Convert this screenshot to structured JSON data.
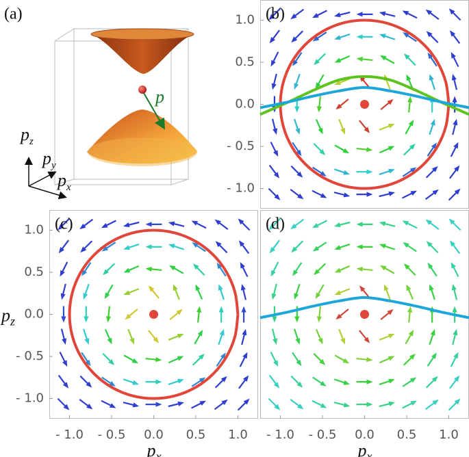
{
  "panel_a": {
    "label": "(a)",
    "vector_label": "p",
    "axis_z": "p",
    "axis_z_sub": "z",
    "axis_y": "p",
    "axis_y_sub": "y",
    "axis_x": "p",
    "axis_x_sub": "x"
  },
  "chart_data": [
    {
      "type": "vector-field",
      "label": "(b)",
      "xlim": [
        -1.24,
        1.24
      ],
      "ylim": [
        -1.24,
        1.24
      ],
      "yticks": [
        {
          "value": -1,
          "label": "- 1.0"
        },
        {
          "value": -0.5,
          "label": "- 0.5"
        },
        {
          "value": 0,
          "label": "0.0"
        },
        0.5,
        {
          "value": 1,
          "label": "1.0"
        }
      ],
      "series": [
        {
          "color": "#e0463a",
          "x": [
            1,
            0.966,
            0.866,
            0.707,
            0.5,
            0.259,
            0,
            -0.259,
            -0.5,
            -0.707,
            -0.866,
            -0.966,
            -1,
            -0.966,
            -0.866,
            -0.707,
            -0.5,
            -0.259,
            0,
            0.259,
            0.5,
            0.707,
            0.866,
            0.966,
            1
          ],
          "values": [
            0,
            0.259,
            0.5,
            0.707,
            0.866,
            0.966,
            1,
            0.966,
            0.866,
            0.707,
            0.5,
            0.259,
            0,
            -0.259,
            -0.5,
            -0.707,
            -0.866,
            -0.966,
            -1,
            -0.966,
            -0.866,
            -0.707,
            -0.5,
            -0.259,
            0
          ]
        },
        {
          "color": "#5ec31f",
          "x": [
            -1.24,
            -0.9,
            -0.6,
            -0.3,
            0,
            0.3,
            0.6,
            0.9,
            1.24
          ],
          "values": [
            -0.12,
            0.03,
            0.17,
            0.29,
            0.33,
            0.29,
            0.17,
            0.03,
            -0.12
          ]
        },
        {
          "color": "#1ea6d8",
          "x": [
            -1.24,
            -0.9,
            -0.6,
            -0.3,
            0,
            0.3,
            0.6,
            0.9,
            1.24
          ],
          "values": [
            -0.04,
            0.03,
            0.1,
            0.16,
            0.2,
            0.16,
            0.1,
            0.03,
            -0.04
          ]
        }
      ],
      "points": {
        "color": "#e0463a",
        "x": [
          0
        ],
        "values": [
          0
        ]
      }
    },
    {
      "type": "vector-field",
      "label": "(c)",
      "xlim": [
        -1.24,
        1.24
      ],
      "ylim": [
        -1.24,
        1.24
      ],
      "xlabel": "p",
      "xlabel_sub": "x",
      "ylabel": "p",
      "ylabel_sub": "z",
      "xticks": [
        {
          "value": -1,
          "label": "- 1.0"
        },
        {
          "value": -0.5,
          "label": "- 0.5"
        },
        {
          "value": 0,
          "label": "0.0"
        },
        0.5,
        {
          "value": 1,
          "label": "1.0"
        }
      ],
      "yticks": [
        {
          "value": -1,
          "label": "- 1.0"
        },
        {
          "value": -0.5,
          "label": "- 0.5"
        },
        {
          "value": 0,
          "label": "0.0"
        },
        0.5,
        {
          "value": 1,
          "label": "1.0"
        }
      ],
      "series": [
        {
          "color": "#e0463a",
          "x": [
            1,
            0.966,
            0.866,
            0.707,
            0.5,
            0.259,
            0,
            -0.259,
            -0.5,
            -0.707,
            -0.866,
            -0.966,
            -1,
            -0.966,
            -0.866,
            -0.707,
            -0.5,
            -0.259,
            0,
            0.259,
            0.5,
            0.707,
            0.866,
            0.966,
            1
          ],
          "values": [
            0,
            0.259,
            0.5,
            0.707,
            0.866,
            0.966,
            1,
            0.966,
            0.866,
            0.707,
            0.5,
            0.259,
            0,
            -0.259,
            -0.5,
            -0.707,
            -0.866,
            -0.966,
            -1,
            -0.966,
            -0.866,
            -0.707,
            -0.5,
            -0.259,
            0
          ]
        }
      ],
      "points": {
        "color": "#e0463a",
        "x": [
          0
        ],
        "values": [
          0
        ]
      }
    },
    {
      "type": "vector-field",
      "label": "(d)",
      "xlim": [
        -1.24,
        1.24
      ],
      "ylim": [
        -1.24,
        1.24
      ],
      "xlabel": "p",
      "xlabel_sub": "x",
      "xticks": [
        {
          "value": -1,
          "label": "- 1.0"
        },
        {
          "value": -0.5,
          "label": "- 0.5"
        },
        {
          "value": 0,
          "label": "0.0"
        },
        0.5,
        {
          "value": 1,
          "label": "1.0"
        }
      ],
      "series": [
        {
          "color": "#1ea6d8",
          "x": [
            -1.24,
            -0.9,
            -0.6,
            -0.3,
            0,
            0.3,
            0.6,
            0.9,
            1.24
          ],
          "values": [
            -0.04,
            0.03,
            0.1,
            0.16,
            0.2,
            0.16,
            0.1,
            0.03,
            -0.04
          ]
        }
      ],
      "points": {
        "color": "#e0463a",
        "x": [
          0
        ],
        "values": [
          0
        ]
      }
    }
  ]
}
